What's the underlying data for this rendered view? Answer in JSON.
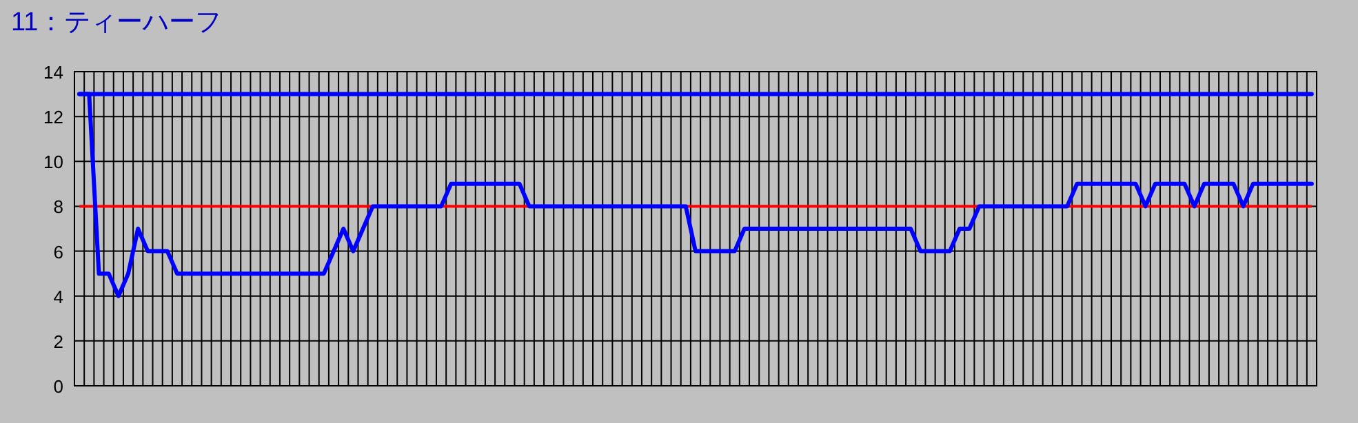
{
  "chart_data": {
    "type": "line",
    "title": "11：ティーハーフ",
    "categories": [
      null,
      null,
      null,
      null,
      null,
      null,
      null,
      null,
      null,
      null,
      null,
      null,
      null,
      null,
      null,
      null,
      null,
      null,
      null,
      null,
      null,
      null,
      null,
      null,
      null,
      null,
      null,
      null,
      null,
      null,
      null,
      null,
      null,
      null,
      null,
      null,
      null,
      null,
      null,
      null,
      null,
      null,
      null,
      null,
      null,
      null,
      null,
      null,
      null,
      null,
      null,
      null,
      null,
      null,
      null,
      null,
      null,
      null,
      null,
      null,
      null,
      null,
      null,
      null,
      null,
      null,
      null,
      null,
      null,
      null,
      null,
      null,
      null,
      null,
      null,
      null,
      null,
      null,
      null,
      null,
      null,
      null,
      null,
      null,
      null,
      null,
      null,
      null,
      null,
      null,
      null,
      null,
      null,
      null,
      null,
      null,
      null,
      null,
      null,
      null,
      null,
      null,
      null,
      null,
      null,
      null,
      null,
      null,
      null,
      null,
      null,
      null,
      null,
      null,
      null,
      null,
      null,
      null,
      null,
      null,
      null,
      null,
      null,
      null,
      null,
      null,
      null
    ],
    "series": [
      {
        "color": "#0000ff",
        "values": [
          13,
          13,
          13,
          13,
          13,
          13,
          13,
          13,
          13,
          13,
          13,
          13,
          13,
          13,
          13,
          13,
          13,
          13,
          13,
          13,
          13,
          13,
          13,
          13,
          13,
          13,
          13,
          13,
          13,
          13,
          13,
          13,
          13,
          13,
          13,
          13,
          13,
          13,
          13,
          13,
          13,
          13,
          13,
          13,
          13,
          13,
          13,
          13,
          13,
          13,
          13,
          13,
          13,
          13,
          13,
          13,
          13,
          13,
          13,
          13,
          13,
          13,
          13,
          13,
          13,
          13,
          13,
          13,
          13,
          13,
          13,
          13,
          13,
          13,
          13,
          13,
          13,
          13,
          13,
          13,
          13,
          13,
          13,
          13,
          13,
          13,
          13,
          13,
          13,
          13,
          13,
          13,
          13,
          13,
          13,
          13,
          13,
          13,
          13,
          13,
          13,
          13,
          13,
          13,
          13,
          13,
          13,
          13,
          13,
          13,
          13,
          13,
          13,
          13,
          13,
          13,
          13,
          13,
          13,
          13,
          13,
          13,
          13,
          13,
          13,
          13,
          13
        ]
      },
      {
        "color": "#0000ff",
        "values": [
          13,
          13,
          5,
          5,
          4,
          5,
          7,
          6,
          6,
          6,
          5,
          5,
          5,
          5,
          5,
          5,
          5,
          5,
          5,
          5,
          5,
          5,
          5,
          5,
          5,
          5,
          6,
          7,
          6,
          7,
          8,
          8,
          8,
          8,
          8,
          8,
          8,
          8,
          9,
          9,
          9,
          9,
          9,
          9,
          9,
          9,
          8,
          8,
          8,
          8,
          8,
          8,
          8,
          8,
          8,
          8,
          8,
          8,
          8,
          8,
          8,
          8,
          8,
          6,
          6,
          6,
          6,
          6,
          7,
          7,
          7,
          7,
          7,
          7,
          7,
          7,
          7,
          7,
          7,
          7,
          7,
          7,
          7,
          7,
          7,
          7,
          6,
          6,
          6,
          6,
          7,
          7,
          8,
          8,
          8,
          8,
          8,
          8,
          8,
          8,
          8,
          8,
          9,
          9,
          9,
          9,
          9,
          9,
          9,
          8,
          9,
          9,
          9,
          9,
          8,
          9,
          9,
          9,
          9,
          8,
          9,
          9,
          9,
          9,
          9,
          9,
          9
        ]
      }
    ],
    "ylim": [
      0,
      14
    ],
    "yticks": [
      0,
      2,
      4,
      6,
      8,
      10,
      12,
      14
    ],
    "grid": true,
    "ref_lines": [
      {
        "axis": "y",
        "value": 8,
        "color": "#ff0000"
      }
    ]
  }
}
